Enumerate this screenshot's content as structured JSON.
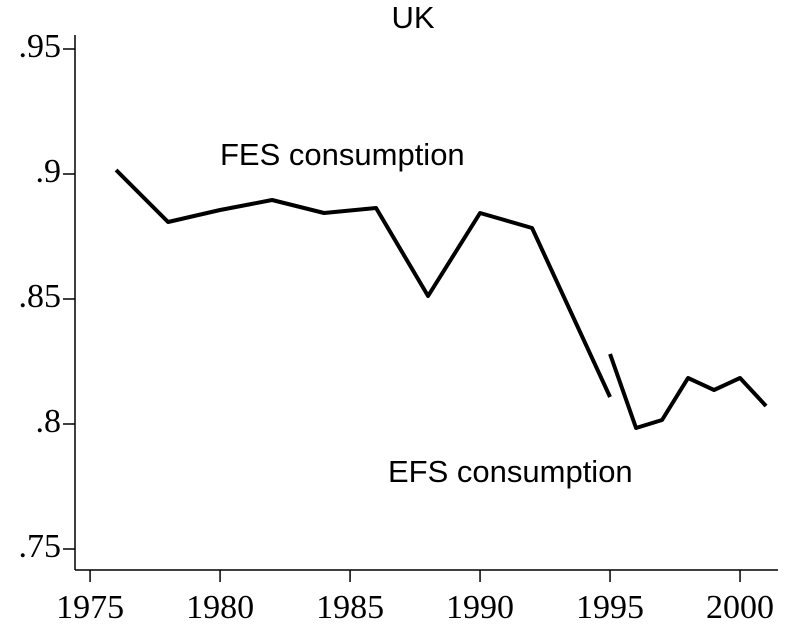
{
  "chart_data": {
    "type": "line",
    "title": "UK",
    "series": [
      {
        "name": "FES consumption",
        "color": "#000000",
        "x": [
          1976,
          1978,
          1980,
          1982,
          1984,
          1986,
          1988,
          1990,
          1992,
          1995
        ],
        "values": [
          0.9016,
          0.8808,
          0.8856,
          0.8896,
          0.8844,
          0.8864,
          0.8512,
          0.8844,
          0.8784,
          0.8108
        ]
      },
      {
        "name": "EFS consumption",
        "color": "#000000",
        "x": [
          1995,
          1996,
          1997,
          1998,
          1999,
          2000,
          2001
        ],
        "values": [
          0.828,
          0.7984,
          0.8016,
          0.8184,
          0.8136,
          0.8184,
          0.8072
        ]
      }
    ],
    "xlim": [
      1974.42,
      2001.46
    ],
    "xticks": [
      1975,
      1980,
      1985,
      1990,
      1995,
      2000
    ],
    "ylim": [
      0.7416,
      0.9556
    ],
    "yticks": [
      {
        "value": 0.75,
        "label": ".75"
      },
      {
        "value": 0.8,
        "label": ".8"
      },
      {
        "value": 0.85,
        "label": ".85"
      },
      {
        "value": 0.9,
        "label": ".9"
      },
      {
        "value": 0.95,
        "label": ".95"
      }
    ]
  }
}
